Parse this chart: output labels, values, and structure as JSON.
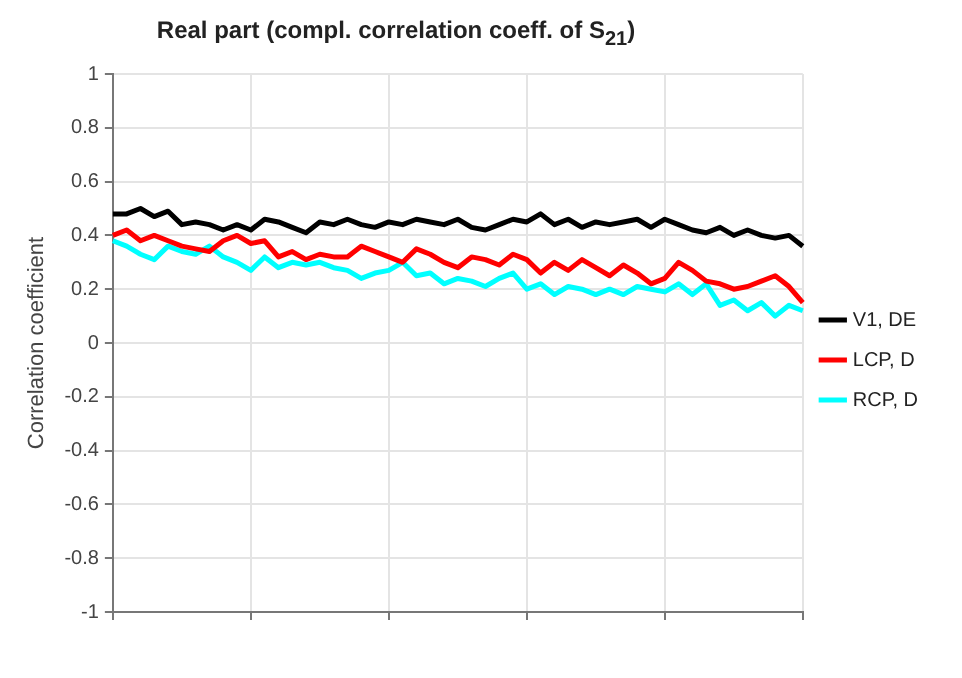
{
  "chart_data": {
    "type": "line",
    "title": "Real part (compl. correlation coeff. of S$_{21}$)",
    "ylabel": "Correlation coefficient",
    "categories": [
      null,
      null,
      null,
      null,
      null,
      null,
      null,
      null,
      null,
      null,
      null,
      null,
      null,
      null,
      null,
      null,
      null,
      null,
      null,
      null,
      null,
      null,
      null,
      null,
      null,
      null,
      null,
      null,
      null,
      null,
      null,
      null,
      null,
      null,
      null,
      null,
      null,
      null,
      null,
      null,
      null,
      null,
      null,
      null,
      null,
      null,
      null,
      null,
      null,
      null,
      null
    ],
    "ylim": [
      -1,
      1
    ],
    "yticks": [
      -1,
      -0.8,
      -0.6,
      -0.4,
      -0.2,
      0,
      0.2,
      0.4,
      0.6,
      0.8,
      1
    ],
    "grid": true,
    "legend": "right",
    "line_style": "solid",
    "series": [
      {
        "name": "V1, DE",
        "color": "#000000",
        "values": [
          0.48,
          0.48,
          0.5,
          0.47,
          0.49,
          0.44,
          0.45,
          0.44,
          0.42,
          0.44,
          0.42,
          0.46,
          0.45,
          0.43,
          0.41,
          0.45,
          0.44,
          0.46,
          0.44,
          0.43,
          0.45,
          0.44,
          0.46,
          0.45,
          0.44,
          0.46,
          0.43,
          0.42,
          0.44,
          0.46,
          0.45,
          0.48,
          0.44,
          0.46,
          0.43,
          0.45,
          0.44,
          0.45,
          0.46,
          0.43,
          0.46,
          0.44,
          0.42,
          0.41,
          0.43,
          0.4,
          0.42,
          0.4,
          0.39,
          0.4,
          0.36
        ]
      },
      {
        "name": "LCP, D",
        "color": "#ff0000",
        "values": [
          0.4,
          0.42,
          0.38,
          0.4,
          0.38,
          0.36,
          0.35,
          0.34,
          0.38,
          0.4,
          0.37,
          0.38,
          0.32,
          0.34,
          0.31,
          0.33,
          0.32,
          0.32,
          0.36,
          0.34,
          0.32,
          0.3,
          0.35,
          0.33,
          0.3,
          0.28,
          0.32,
          0.31,
          0.29,
          0.33,
          0.31,
          0.26,
          0.3,
          0.27,
          0.31,
          0.28,
          0.25,
          0.29,
          0.26,
          0.22,
          0.24,
          0.3,
          0.27,
          0.23,
          0.22,
          0.2,
          0.21,
          0.23,
          0.25,
          0.21,
          0.15
        ]
      },
      {
        "name": "RCP, D",
        "color": "#00ffff",
        "values": [
          0.38,
          0.36,
          0.33,
          0.31,
          0.36,
          0.34,
          0.33,
          0.36,
          0.32,
          0.3,
          0.27,
          0.32,
          0.28,
          0.3,
          0.29,
          0.3,
          0.28,
          0.27,
          0.24,
          0.26,
          0.27,
          0.3,
          0.25,
          0.26,
          0.22,
          0.24,
          0.23,
          0.21,
          0.24,
          0.26,
          0.2,
          0.22,
          0.18,
          0.21,
          0.2,
          0.18,
          0.2,
          0.18,
          0.21,
          0.2,
          0.19,
          0.22,
          0.18,
          0.22,
          0.14,
          0.16,
          0.12,
          0.15,
          0.1,
          0.14,
          0.12
        ]
      }
    ]
  }
}
